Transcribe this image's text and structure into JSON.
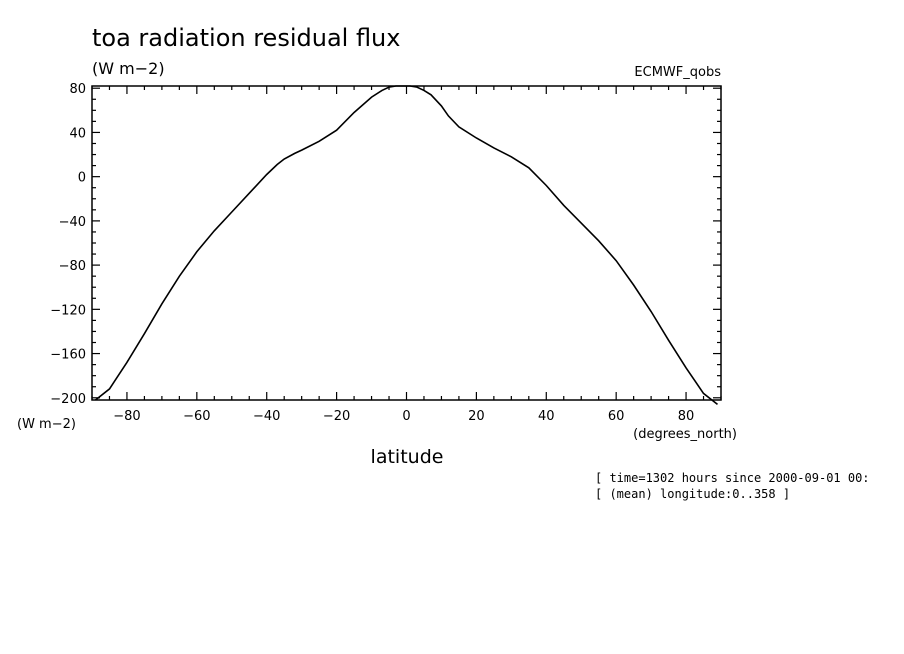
{
  "chart_data": {
    "type": "line",
    "title": "toa radiation residual flux",
    "units_label": "(W m−2)",
    "dataset_label": "ECMWF_qobs",
    "ylabel": "(W m−2)",
    "xlabel": "latitude",
    "xunits": "(degrees_north)",
    "xlim": [
      -90,
      90
    ],
    "ylim": [
      -202,
      82
    ],
    "xticks": [
      -80,
      -60,
      -40,
      -20,
      0,
      20,
      40,
      60,
      80
    ],
    "yticks": [
      80,
      40,
      0,
      -40,
      -80,
      -120,
      -160,
      -200
    ],
    "xticklabels": [
      "−80",
      "−60",
      "−40",
      "−20",
      "0",
      "20",
      "40",
      "60",
      "80"
    ],
    "yticklabels": [
      "80",
      "40",
      "0",
      "−40",
      "−80",
      "−120",
      "−160",
      "−200"
    ],
    "grid": false,
    "x": [
      -89,
      -85,
      -80,
      -75,
      -70,
      -65,
      -60,
      -55,
      -50,
      -45,
      -40,
      -37,
      -35,
      -32,
      -30,
      -25,
      -20,
      -15,
      -10,
      -7,
      -5,
      -3,
      -1,
      0,
      1,
      3,
      5,
      7,
      10,
      12,
      15,
      20,
      25,
      30,
      35,
      40,
      45,
      50,
      55,
      60,
      65,
      70,
      75,
      80,
      85,
      89
    ],
    "y": [
      -202,
      -192,
      -168,
      -142,
      -115,
      -90,
      -68,
      -49,
      -32,
      -15,
      2,
      11,
      16,
      21,
      24,
      32,
      42,
      58,
      72,
      78,
      81,
      82,
      82,
      82,
      82,
      81,
      78,
      74,
      64,
      55,
      45,
      35,
      26,
      18,
      8,
      -8,
      -26,
      -42,
      -58,
      -76,
      -98,
      -122,
      -148,
      -173,
      -196,
      -206
    ]
  },
  "footnotes": [
    "[ time=1302 hours since 2000-09-01 00:",
    "[ (mean) longitude:0..358 ]"
  ]
}
